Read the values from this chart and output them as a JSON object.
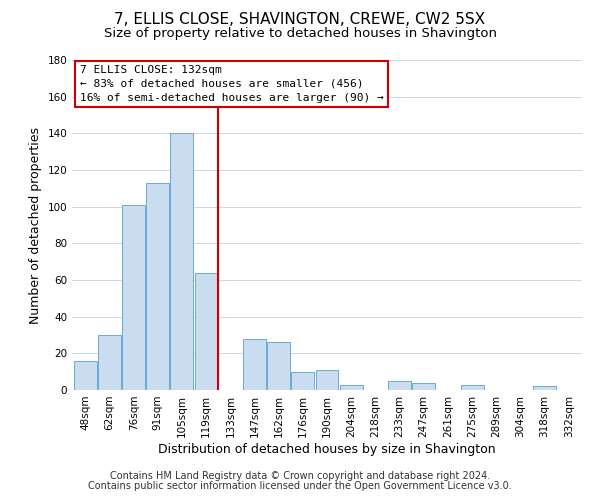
{
  "title": "7, ELLIS CLOSE, SHAVINGTON, CREWE, CW2 5SX",
  "subtitle": "Size of property relative to detached houses in Shavington",
  "xlabel": "Distribution of detached houses by size in Shavington",
  "ylabel": "Number of detached properties",
  "footer_line1": "Contains HM Land Registry data © Crown copyright and database right 2024.",
  "footer_line2": "Contains public sector information licensed under the Open Government Licence v3.0.",
  "bar_labels": [
    "48sqm",
    "62sqm",
    "76sqm",
    "91sqm",
    "105sqm",
    "119sqm",
    "133sqm",
    "147sqm",
    "162sqm",
    "176sqm",
    "190sqm",
    "204sqm",
    "218sqm",
    "233sqm",
    "247sqm",
    "261sqm",
    "275sqm",
    "289sqm",
    "304sqm",
    "318sqm",
    "332sqm"
  ],
  "bar_values": [
    16,
    30,
    101,
    113,
    140,
    64,
    0,
    28,
    26,
    10,
    11,
    3,
    0,
    5,
    4,
    0,
    3,
    0,
    0,
    2,
    0
  ],
  "bar_color": "#c9dcf0",
  "bar_edge_color": "#6aaad4",
  "reference_line_color": "#cc0000",
  "ylim": [
    0,
    180
  ],
  "yticks": [
    0,
    20,
    40,
    60,
    80,
    100,
    120,
    140,
    160,
    180
  ],
  "annotation_title": "7 ELLIS CLOSE: 132sqm",
  "annotation_line1": "← 83% of detached houses are smaller (456)",
  "annotation_line2": "16% of semi-detached houses are larger (90) →",
  "annotation_box_color": "#ffffff",
  "annotation_box_edge": "#cc0000",
  "title_fontsize": 11,
  "subtitle_fontsize": 9.5,
  "axis_label_fontsize": 9,
  "tick_fontsize": 7.5,
  "annotation_fontsize": 8,
  "footer_fontsize": 7
}
